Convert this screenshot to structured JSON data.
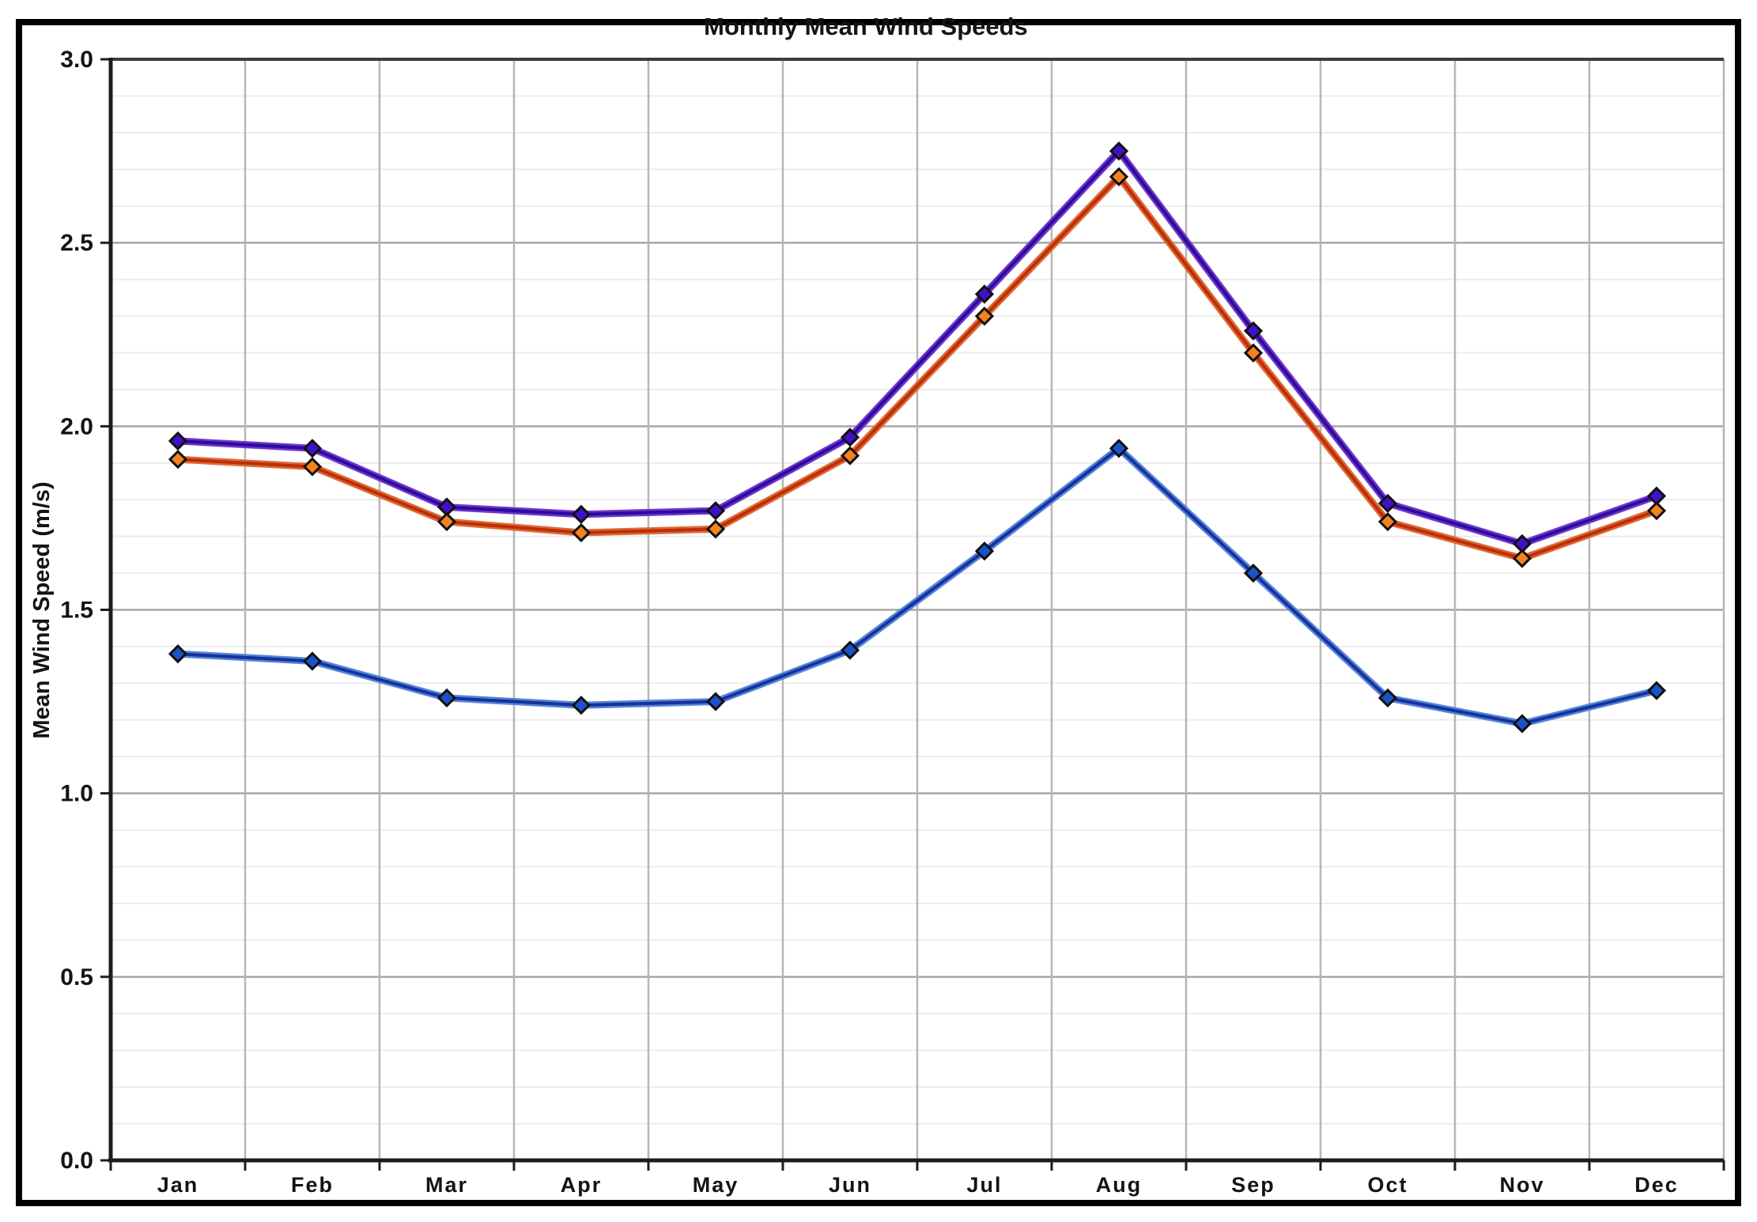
{
  "title": "Monthly Mean Wind Speeds",
  "ylabel": "Mean Wind Speed (m/s)",
  "chart_data": {
    "type": "line",
    "categories": [
      "Jan",
      "Feb",
      "Mar",
      "Apr",
      "May",
      "Jun",
      "Jul",
      "Aug",
      "Sep",
      "Oct",
      "Nov",
      "Dec"
    ],
    "series": [
      {
        "name": "purple-series",
        "line_color": "#2e0a9e",
        "edge_color": "#6f35cc",
        "marker_color": "#3f12c8",
        "values": [
          1.96,
          1.94,
          1.78,
          1.76,
          1.77,
          1.97,
          2.36,
          2.75,
          2.26,
          1.79,
          1.68,
          1.81
        ]
      },
      {
        "name": "red-series",
        "line_color": "#bd2e08",
        "edge_color": "#dd6a35",
        "marker_color": "#f5821e",
        "values": [
          1.91,
          1.89,
          1.74,
          1.71,
          1.72,
          1.92,
          2.3,
          2.68,
          2.2,
          1.74,
          1.64,
          1.77
        ]
      },
      {
        "name": "blue-series",
        "line_color": "#15329f",
        "edge_color": "#5584d6",
        "marker_color": "#1a52c8",
        "values": [
          1.38,
          1.36,
          1.26,
          1.24,
          1.25,
          1.39,
          1.66,
          1.94,
          1.6,
          1.26,
          1.19,
          1.28
        ]
      }
    ],
    "title": "Monthly Mean Wind Speeds",
    "xlabel": "",
    "ylabel": "Mean Wind Speed (m/s)",
    "ylim": [
      0.0,
      3.0
    ],
    "ytick_step": 0.5,
    "yminor_step": 0.1,
    "ytick_labels": [
      "3.0",
      "2.5",
      "2.0",
      "1.5",
      "1.0",
      "0.5",
      "0.0"
    ],
    "grid": true,
    "legend": "none",
    "marker_shape": "diamond",
    "colors": {
      "figure_border": "#000000",
      "background": "#ffffff",
      "axis": "#1c1c1c",
      "major_grid": "#a6a6a6",
      "vertical_grid": "#b6b6b6",
      "minor_grid": "#ececec",
      "marker_outline": "#111111"
    }
  }
}
